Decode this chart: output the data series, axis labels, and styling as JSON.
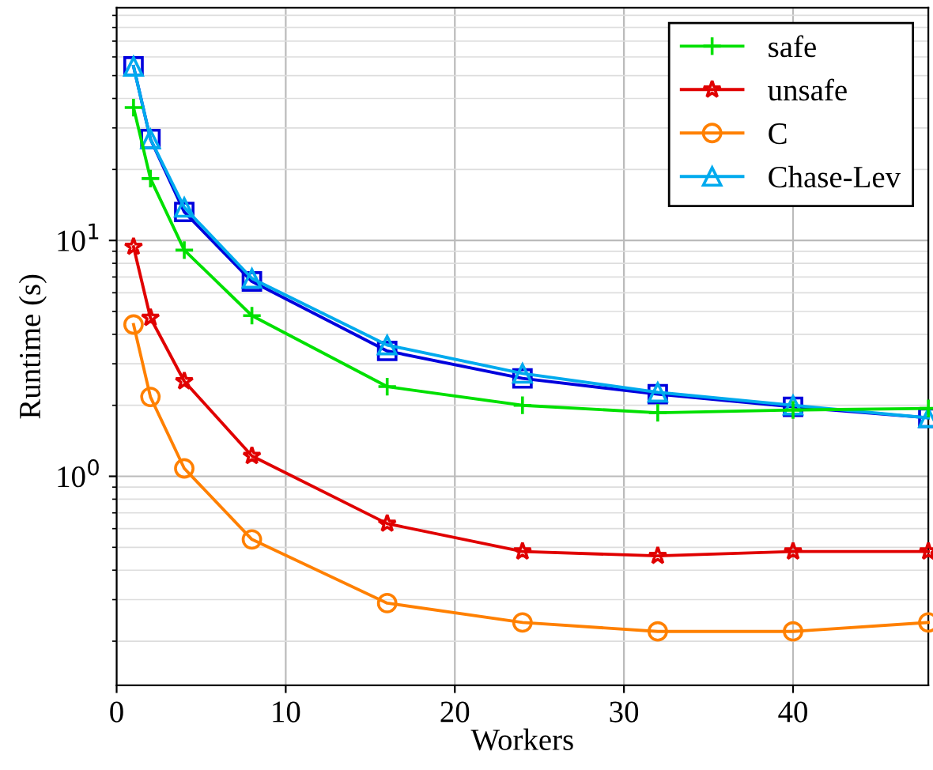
{
  "chart_data": {
    "type": "line",
    "xlabel": "Workers",
    "ylabel": "Runtime (s)",
    "log": "y",
    "grid": true,
    "legend": "top right",
    "x": [
      1,
      2,
      4,
      8,
      16,
      24,
      32,
      40,
      48
    ],
    "xlim": [
      0,
      48
    ],
    "xticks": [
      0,
      10,
      20,
      30,
      40
    ],
    "ylim": [
      0.13,
      97
    ],
    "yticks": [
      {
        "value": 1,
        "label": "10$^{0}$"
      },
      {
        "value": 10,
        "label": "10$^{1}$"
      }
    ],
    "series": [
      {
        "name": "safe",
        "color": "#00e000",
        "marker": "cross",
        "values": [
          36.6,
          18.3,
          9.1,
          4.8,
          2.4,
          2.0,
          1.86,
          1.91,
          1.94
        ]
      },
      {
        "name": "unsafe",
        "color": "#e00000",
        "marker": "star",
        "values": [
          9.4,
          4.7,
          2.53,
          1.22,
          0.63,
          0.48,
          0.46,
          0.48,
          0.48
        ]
      },
      {
        "name": "C",
        "color": "#ff8000",
        "marker": "circle",
        "values": [
          4.4,
          2.17,
          1.08,
          0.54,
          0.29,
          0.24,
          0.22,
          0.22,
          0.24
        ]
      },
      {
        "name": "Chase-Lev",
        "color": "#00aaee",
        "marker": "triangle",
        "values": [
          54.7,
          26.9,
          13.8,
          6.9,
          3.6,
          2.73,
          2.27,
          2.0,
          1.77
        ]
      },
      {
        "color": "#0000dd",
        "marker": "square",
        "values": [
          54.7,
          26.9,
          13.2,
          6.7,
          3.4,
          2.6,
          2.23,
          1.97,
          1.77
        ]
      }
    ]
  }
}
